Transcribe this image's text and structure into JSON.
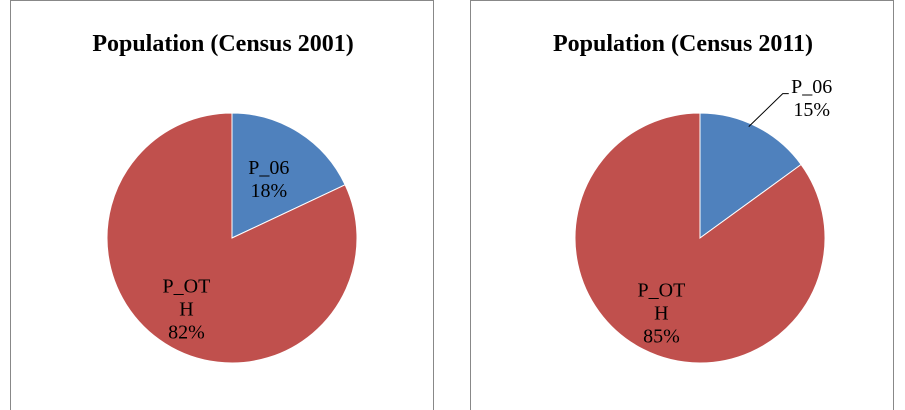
{
  "chart_data": [
    {
      "type": "pie",
      "title": "Population (Census 2001)",
      "categories": [
        "P_06",
        "P_OTH"
      ],
      "values": [
        18,
        82
      ],
      "value_labels": [
        "18%",
        "82%"
      ],
      "colors": [
        "#4f81bd",
        "#c0504d"
      ]
    },
    {
      "type": "pie",
      "title": "Population (Census 2011)",
      "categories": [
        "P_06",
        "P_OTH"
      ],
      "values": [
        15,
        85
      ],
      "value_labels": [
        "15%",
        "85%"
      ],
      "colors": [
        "#4f81bd",
        "#c0504d"
      ]
    }
  ]
}
